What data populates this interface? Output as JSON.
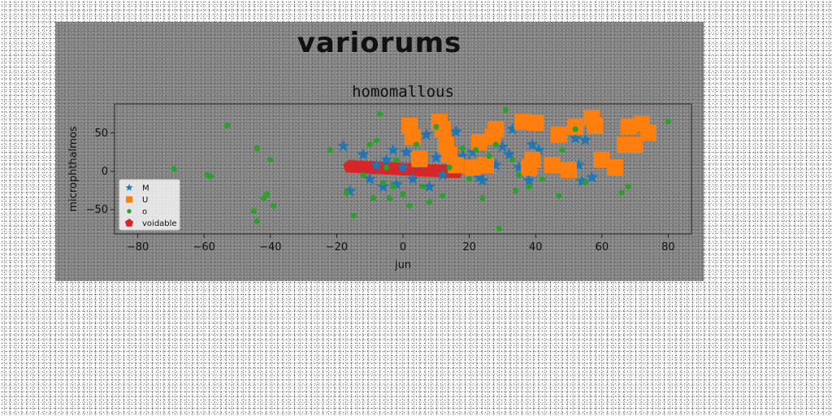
{
  "figure": {
    "suptitle": "variorums"
  },
  "chart_data": {
    "type": "scatter",
    "title": "homomallous",
    "xlabel": "jun",
    "ylabel": "microphthalmos",
    "xlim": [
      -87,
      87
    ],
    "ylim": [
      -82,
      88
    ],
    "xticks": [
      -80,
      -60,
      -40,
      -20,
      0,
      20,
      40,
      60,
      80
    ],
    "yticks": [
      -50,
      0,
      50
    ],
    "grid": false,
    "legend_position": "lower-left",
    "series": [
      {
        "name": "M",
        "marker": "star",
        "color": "#1f77b4",
        "points": [
          [
            -18,
            33
          ],
          [
            -16,
            -26
          ],
          [
            -12,
            22
          ],
          [
            -10,
            -10
          ],
          [
            -8,
            8
          ],
          [
            -6,
            -20
          ],
          [
            -5,
            15
          ],
          [
            -3,
            28
          ],
          [
            -2,
            -17
          ],
          [
            0,
            5
          ],
          [
            1,
            25
          ],
          [
            3,
            -10
          ],
          [
            5,
            10
          ],
          [
            7,
            48
          ],
          [
            8,
            -20
          ],
          [
            10,
            18
          ],
          [
            12,
            -5
          ],
          [
            14,
            32
          ],
          [
            16,
            52
          ],
          [
            18,
            20
          ],
          [
            20,
            12
          ],
          [
            21,
            25
          ],
          [
            23,
            -8
          ],
          [
            24,
            -12
          ],
          [
            26,
            40
          ],
          [
            28,
            8
          ],
          [
            30,
            32
          ],
          [
            32,
            22
          ],
          [
            33,
            55
          ],
          [
            35,
            5
          ],
          [
            37,
            12
          ],
          [
            38,
            -12
          ],
          [
            39,
            35
          ],
          [
            41,
            28
          ],
          [
            52,
            43
          ],
          [
            53,
            8
          ],
          [
            54,
            -13
          ],
          [
            55,
            41
          ],
          [
            57,
            -8
          ]
        ]
      },
      {
        "name": "U",
        "marker": "square",
        "color": "#ff7f0e",
        "points": [
          [
            2,
            60
          ],
          [
            3,
            45
          ],
          [
            5,
            16
          ],
          [
            11,
            65
          ],
          [
            12,
            55
          ],
          [
            13,
            35
          ],
          [
            14,
            22
          ],
          [
            16,
            8
          ],
          [
            21,
            5
          ],
          [
            23,
            38
          ],
          [
            25,
            8
          ],
          [
            27,
            45
          ],
          [
            28,
            55
          ],
          [
            36,
            65
          ],
          [
            38,
            5
          ],
          [
            39,
            15
          ],
          [
            40,
            63
          ],
          [
            45,
            8
          ],
          [
            47,
            48
          ],
          [
            50,
            2
          ],
          [
            52,
            58
          ],
          [
            57,
            70
          ],
          [
            58,
            60
          ],
          [
            60,
            15
          ],
          [
            64,
            5
          ],
          [
            67,
            35
          ],
          [
            68,
            58
          ],
          [
            70,
            35
          ],
          [
            72,
            62
          ],
          [
            74,
            50
          ]
        ]
      },
      {
        "name": "o",
        "marker": "circle",
        "color": "#2ca02c",
        "points": [
          [
            -69,
            3
          ],
          [
            -59,
            -5
          ],
          [
            -58,
            -7
          ],
          [
            -53,
            60
          ],
          [
            -45,
            -52
          ],
          [
            -44,
            30
          ],
          [
            -44,
            -65
          ],
          [
            -42,
            -35
          ],
          [
            -41,
            -30
          ],
          [
            -40,
            15
          ],
          [
            -39,
            -45
          ],
          [
            -22,
            28
          ],
          [
            -17,
            -28
          ],
          [
            -15,
            -58
          ],
          [
            -12,
            -5
          ],
          [
            -10,
            35
          ],
          [
            -9,
            -35
          ],
          [
            -8,
            40
          ],
          [
            -7,
            75
          ],
          [
            -6,
            -15
          ],
          [
            -5,
            5
          ],
          [
            -4,
            -35
          ],
          [
            -3,
            -20
          ],
          [
            -2,
            15
          ],
          [
            0,
            -30
          ],
          [
            2,
            -45
          ],
          [
            4,
            35
          ],
          [
            6,
            -20
          ],
          [
            8,
            -40
          ],
          [
            10,
            58
          ],
          [
            12,
            -32
          ],
          [
            14,
            5
          ],
          [
            18,
            30
          ],
          [
            20,
            -10
          ],
          [
            22,
            28
          ],
          [
            24,
            -35
          ],
          [
            26,
            20
          ],
          [
            28,
            35
          ],
          [
            29,
            -75
          ],
          [
            31,
            80
          ],
          [
            33,
            15
          ],
          [
            34,
            -25
          ],
          [
            35,
            -5
          ],
          [
            38,
            -20
          ],
          [
            42,
            -10
          ],
          [
            47,
            -32
          ],
          [
            48,
            28
          ],
          [
            52,
            55
          ],
          [
            55,
            -15
          ],
          [
            66,
            -28
          ],
          [
            68,
            -20
          ],
          [
            80,
            65
          ]
        ]
      },
      {
        "name": "voidable",
        "marker": "pentagon",
        "color": "#d62728",
        "points": [
          [
            -16,
            6
          ],
          [
            -15,
            5.8
          ],
          [
            -14,
            5.6
          ],
          [
            -13,
            5.4
          ],
          [
            -12,
            5.2
          ],
          [
            -11,
            5
          ],
          [
            -10,
            4.7
          ],
          [
            -9,
            4.5
          ],
          [
            -8,
            4.3
          ],
          [
            -7,
            4.1
          ],
          [
            -6,
            3.9
          ],
          [
            -5,
            3.6
          ],
          [
            -4,
            3.4
          ],
          [
            -3,
            3.2
          ],
          [
            -2,
            3
          ],
          [
            -1,
            2.8
          ],
          [
            0,
            2.6
          ],
          [
            1,
            2.3
          ],
          [
            2,
            2.1
          ],
          [
            3,
            1.9
          ],
          [
            4,
            1.7
          ],
          [
            5,
            1.5
          ],
          [
            6,
            1.2
          ],
          [
            7,
            1
          ],
          [
            8,
            0.8
          ],
          [
            9,
            0.6
          ],
          [
            10,
            0.4
          ],
          [
            11,
            0.1
          ],
          [
            12,
            -0.1
          ],
          [
            13,
            -0.3
          ],
          [
            14,
            -0.5
          ],
          [
            15,
            -0.8
          ],
          [
            16,
            -1
          ]
        ]
      }
    ]
  }
}
